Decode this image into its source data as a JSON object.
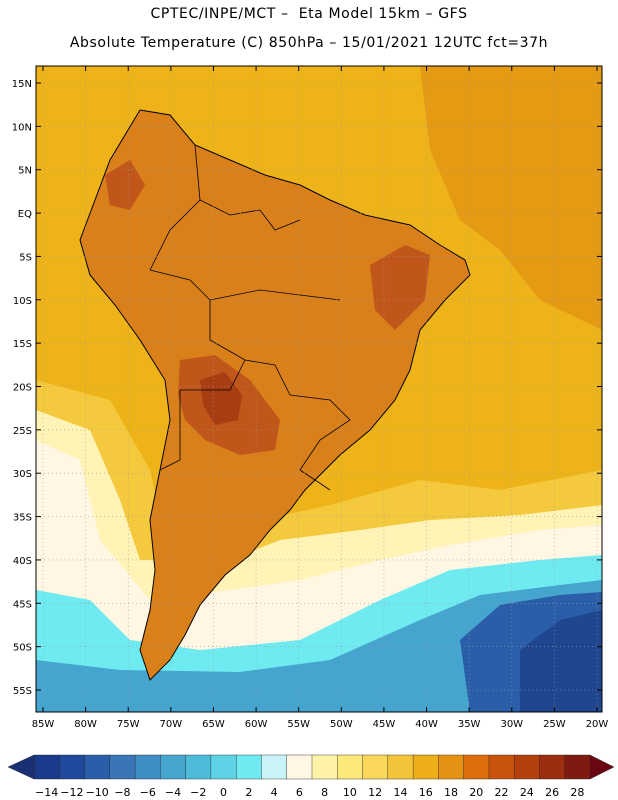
{
  "title_line1": "CPTEC/INPE/MCT –  Eta Model 15km – GFS",
  "title_line2": "Absolute Temperature (C) 850hPa – 15/01/2021 12UTC fct=37h",
  "lat_labels": [
    "15N",
    "10N",
    "5N",
    "EQ",
    "5S",
    "10S",
    "15S",
    "20S",
    "25S",
    "30S",
    "35S",
    "40S",
    "45S",
    "50S",
    "55S"
  ],
  "lon_labels": [
    "85W",
    "80W",
    "75W",
    "70W",
    "65W",
    "60W",
    "55W",
    "50W",
    "45W",
    "40W",
    "35W",
    "30W",
    "25W",
    "20W"
  ],
  "colorbar": {
    "labels": [
      "-14",
      "-12",
      "-10",
      "-8",
      "-6",
      "-4",
      "-2",
      "0",
      "2",
      "4",
      "6",
      "8",
      "10",
      "12",
      "14",
      "16",
      "18",
      "20",
      "22",
      "24",
      "26",
      "28"
    ],
    "colors": [
      "#1a3a8c",
      "#21499b",
      "#2a5ea9",
      "#3a76b6",
      "#3f8ec4",
      "#46a5cf",
      "#4dbcdb",
      "#5ed3e6",
      "#6feaf0",
      "#c9f4f7",
      "#fff6e3",
      "#fff3a8",
      "#ffe87a",
      "#f9d75a",
      "#f3c43a",
      "#eeae17",
      "#e59114",
      "#dc6e0c",
      "#c8530b",
      "#b3400d",
      "#9c2e0f",
      "#7e1a10"
    ],
    "low_arrow_color": "#1b2f75",
    "high_arrow_color": "#6b0712"
  },
  "map_colors": {
    "ocean_warm": "#eeb319",
    "ocean_hot": "#e59a14",
    "land": "#d9801a",
    "land_hot": "#c0561a",
    "land_hottest": "#a83d12",
    "mid": "#f5c93d",
    "pale": "#fff3b5",
    "cream": "#fff6e3",
    "cold1": "#6feaf0",
    "cold2": "#46a5cf",
    "cold3": "#2a5ea9",
    "cold4": "#1f478f",
    "border": "#000000",
    "grid": "#9a9a9a"
  }
}
